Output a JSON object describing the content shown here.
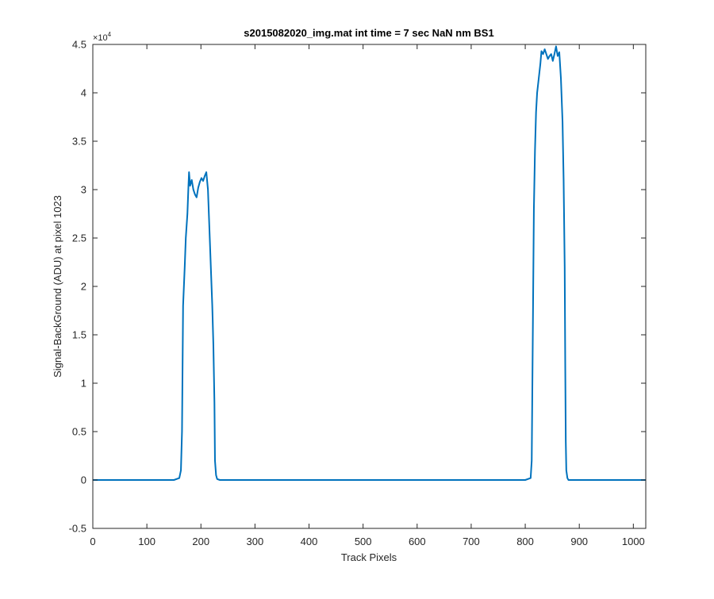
{
  "chart_data": {
    "type": "line",
    "title": "s2015082020_img.mat int time = 7 sec  NaN nm BS1",
    "xlabel": "Track Pixels",
    "ylabel": "Signal-BackGround (ADU) at pixel 1023",
    "xlim": [
      0,
      1023
    ],
    "ylim": [
      -5000,
      45000
    ],
    "y_exponent_label": "×10",
    "y_exponent_power": "4",
    "x_ticks": [
      0,
      100,
      200,
      300,
      400,
      500,
      600,
      700,
      800,
      900,
      1000
    ],
    "x_tick_labels": [
      "0",
      "100",
      "200",
      "300",
      "400",
      "500",
      "600",
      "700",
      "800",
      "900",
      "1000"
    ],
    "y_ticks": [
      -5000,
      0,
      5000,
      10000,
      15000,
      20000,
      25000,
      30000,
      35000,
      40000,
      45000
    ],
    "y_tick_labels": [
      "-0.5",
      "0",
      "0.5",
      "1",
      "1.5",
      "2",
      "2.5",
      "3",
      "3.5",
      "4",
      "4.5"
    ],
    "grid": false,
    "line_color": "#0072BD",
    "series": [
      {
        "x": [
          0,
          50,
          100,
          150,
          160,
          163,
          165,
          167,
          170,
          172,
          175,
          177,
          178,
          180,
          183,
          186,
          189,
          192,
          195,
          198,
          201,
          204,
          207,
          210,
          213,
          215,
          217,
          219,
          221,
          223,
          225,
          226,
          228,
          230,
          235,
          300,
          400,
          500,
          600,
          700,
          800,
          810,
          812,
          814,
          816,
          818,
          820,
          822,
          825,
          828,
          830,
          833,
          836,
          839,
          842,
          845,
          848,
          851,
          854,
          857,
          860,
          863,
          866,
          869,
          871,
          873,
          874,
          875,
          876,
          878,
          880,
          900,
          950,
          1000,
          1023
        ],
        "y": [
          0,
          0,
          0,
          0,
          200,
          1000,
          5000,
          18000,
          22000,
          25000,
          27500,
          30500,
          31800,
          30400,
          31000,
          30000,
          29500,
          29200,
          30200,
          30800,
          31200,
          30900,
          31400,
          31800,
          30000,
          27000,
          24000,
          21000,
          18000,
          14000,
          8000,
          2000,
          500,
          100,
          0,
          0,
          0,
          0,
          0,
          0,
          0,
          200,
          2000,
          15000,
          28000,
          34000,
          38000,
          40000,
          41500,
          43000,
          44300,
          44000,
          44500,
          44000,
          43500,
          43800,
          44000,
          43300,
          44000,
          44800,
          43800,
          44200,
          41500,
          37000,
          31000,
          22000,
          12000,
          4000,
          1000,
          200,
          0,
          0,
          0,
          0,
          0
        ]
      }
    ]
  }
}
